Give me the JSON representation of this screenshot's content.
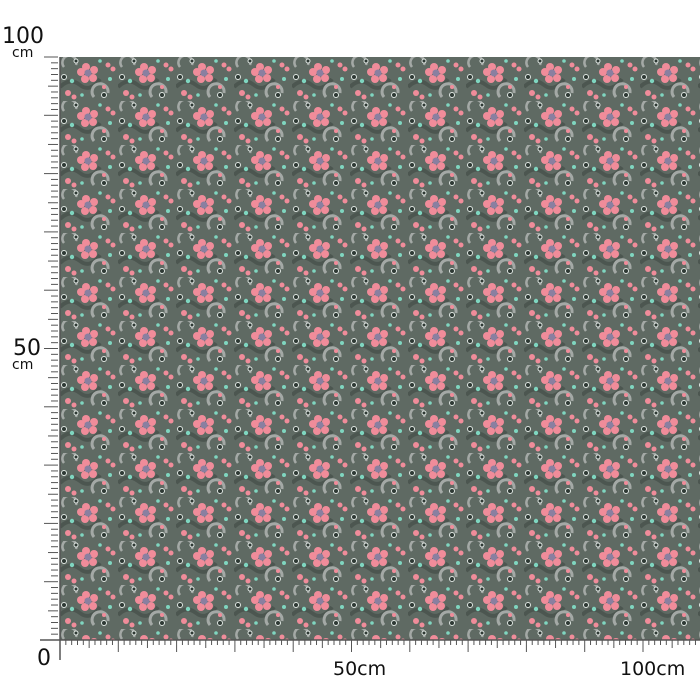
{
  "vertical_ruler": {
    "top_label": "100",
    "top_unit": "cm",
    "mid_label": "50",
    "mid_unit": "cm",
    "origin_label": "0"
  },
  "horizontal_ruler": {
    "mid_label": "50cm",
    "end_label": "100cm"
  },
  "fabric": {
    "pattern": "small pink floral with mint dots on grey-green",
    "colors": {
      "background": "#5f6a63",
      "flower": "#f08c9a",
      "accent": "#7fd6c0",
      "swirl": "#a4a9a6",
      "dark": "#2d3833"
    }
  }
}
